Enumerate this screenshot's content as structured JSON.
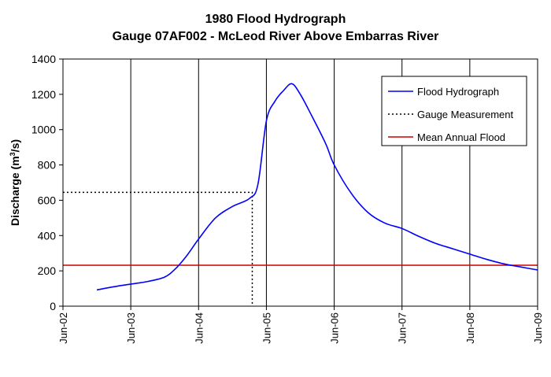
{
  "chart_data": {
    "type": "line",
    "title": "1980 Flood Hydrograph",
    "subtitle": "Gauge 07AF002 - McLeod River Above Embarras River",
    "ylabel": "Discharge (m3/s)",
    "ylabel_main": "Discharge (m",
    "ylabel_sup": "3",
    "ylabel_end": "/s)",
    "xlabel": "",
    "ylim": [
      0,
      1400
    ],
    "yticks": [
      0,
      200,
      400,
      600,
      800,
      1000,
      1200,
      1400
    ],
    "xlim": [
      "1980-06-02",
      "1980-06-09"
    ],
    "xticks": [
      "Jun-02",
      "Jun-03",
      "Jun-04",
      "Jun-05",
      "Jun-06",
      "Jun-07",
      "Jun-08",
      "Jun-09"
    ],
    "grid": "vertical",
    "legend_position": "top-right",
    "series": [
      {
        "name": "Flood Hydrograph",
        "color": "#0000ff",
        "style": "solid",
        "x": [
          "1980-06-02 12:00",
          "1980-06-02 18:00",
          "1980-06-03 00:00",
          "1980-06-03 06:00",
          "1980-06-03 12:00",
          "1980-06-03 16:00",
          "1980-06-03 20:00",
          "1980-06-04 00:00",
          "1980-06-04 06:00",
          "1980-06-04 12:00",
          "1980-06-04 18:00",
          "1980-06-04 21:00",
          "1980-06-05 00:00",
          "1980-06-05 03:00",
          "1980-06-05 06:00",
          "1980-06-05 09:00",
          "1980-06-05 12:00",
          "1980-06-05 16:00",
          "1980-06-05 21:00",
          "1980-06-06 00:00",
          "1980-06-06 06:00",
          "1980-06-06 12:00",
          "1980-06-06 18:00",
          "1980-06-07 00:00",
          "1980-06-07 06:00",
          "1980-06-07 12:00",
          "1980-06-07 18:00",
          "1980-06-08 00:00",
          "1980-06-08 06:00",
          "1980-06-08 12:00",
          "1980-06-08 18:00",
          "1980-06-09 00:00"
        ],
        "values": [
          92,
          110,
          125,
          140,
          165,
          215,
          290,
          380,
          500,
          565,
          610,
          690,
          1050,
          1160,
          1220,
          1260,
          1200,
          1080,
          920,
          800,
          640,
          530,
          470,
          440,
          395,
          355,
          325,
          295,
          265,
          240,
          222,
          205
        ]
      },
      {
        "name": "Gauge Measurement",
        "color": "#000000",
        "style": "dotted",
        "x": "1980-06-04 19:00",
        "value": 645
      },
      {
        "name": "Mean Annual Flood",
        "color": "#cc0000",
        "style": "solid",
        "value": 232
      }
    ]
  }
}
